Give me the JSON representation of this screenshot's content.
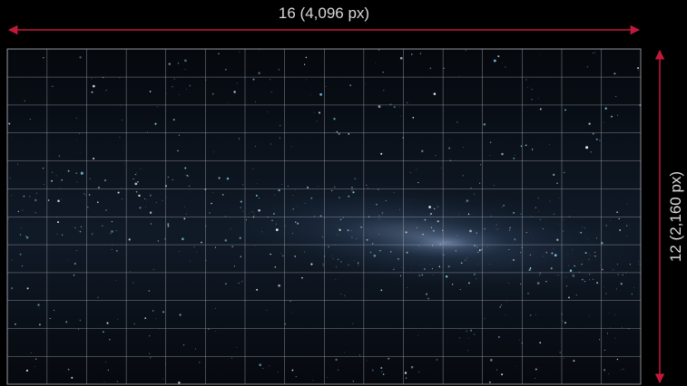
{
  "diagram": {
    "width_label": "16 (4,096 px)",
    "height_label": "12 (2,160 px)"
  }
}
